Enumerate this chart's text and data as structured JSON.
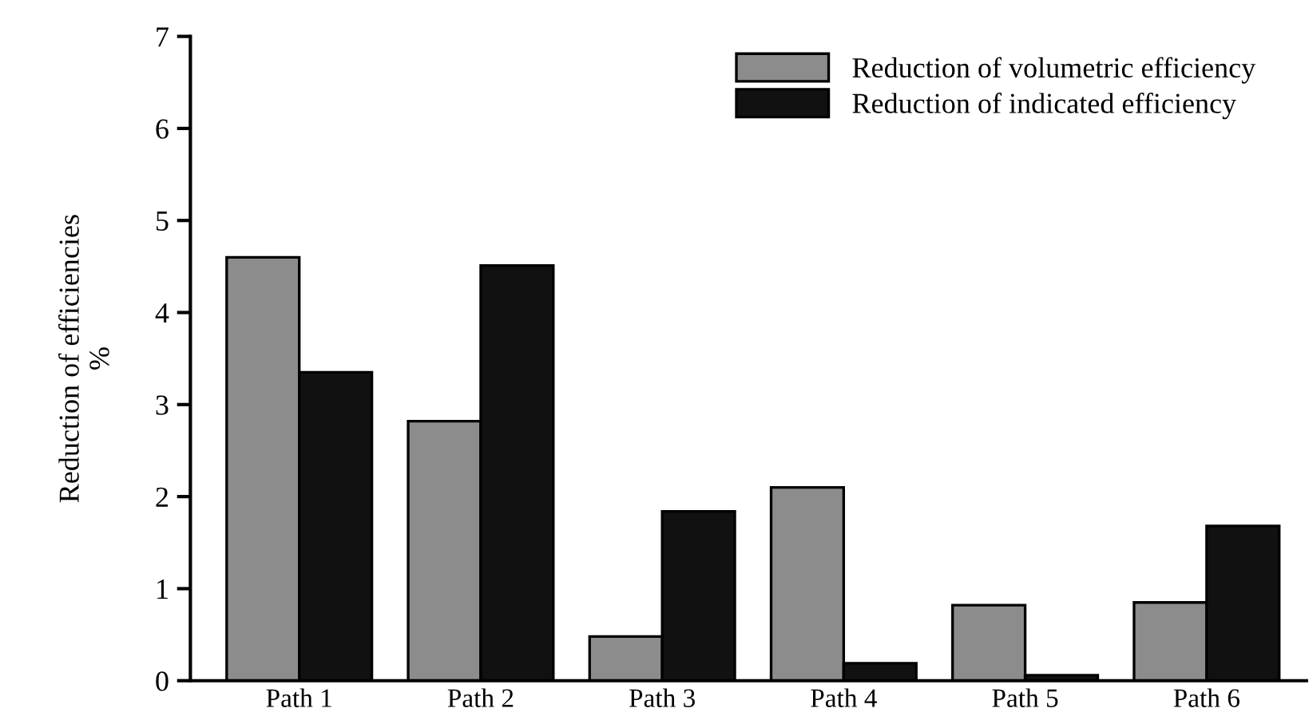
{
  "chart_data": {
    "type": "bar",
    "ylabel": "Reduction of efficiencies\n%",
    "categories": [
      "Path 1",
      "Path 2",
      "Path 3",
      "Path 4",
      "Path 5",
      "Path 6"
    ],
    "series": [
      {
        "name": "Reduction of volumetric efficiency",
        "color": "#8c8c8c",
        "values": [
          4.6,
          2.82,
          0.48,
          2.1,
          0.82,
          0.85
        ]
      },
      {
        "name": "Reduction of indicated efficiency",
        "color": "#111111",
        "values": [
          3.35,
          4.51,
          1.84,
          0.19,
          0.06,
          1.68
        ]
      }
    ],
    "ylim": [
      0,
      7
    ],
    "yticks": [
      0,
      1,
      2,
      3,
      4,
      5,
      6,
      7
    ],
    "grid": false,
    "legend": "top right"
  }
}
